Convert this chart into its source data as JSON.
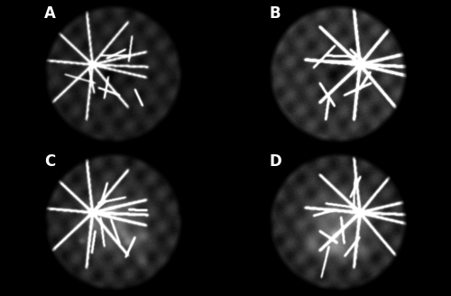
{
  "figure_width": 5.0,
  "figure_height": 3.28,
  "dpi": 100,
  "background_color": "#000000",
  "panel_labels": [
    "A",
    "B",
    "C",
    "D"
  ],
  "label_color": "#ffffff",
  "label_fontsize": 12,
  "label_fontweight": "bold",
  "grid_rows": 2,
  "grid_cols": 2,
  "panels": [
    {
      "id": "A",
      "base_gray": 80,
      "center_dark": true,
      "leakage": false,
      "brightness": 0.55,
      "disc_left": true
    },
    {
      "id": "B",
      "base_gray": 95,
      "center_dark": true,
      "leakage": false,
      "brightness": 0.75,
      "disc_left": false
    },
    {
      "id": "C",
      "base_gray": 70,
      "center_dark": false,
      "leakage": true,
      "brightness": 0.65,
      "disc_left": true
    },
    {
      "id": "D",
      "base_gray": 75,
      "center_dark": false,
      "leakage": true,
      "brightness": 0.7,
      "disc_left": false
    }
  ]
}
